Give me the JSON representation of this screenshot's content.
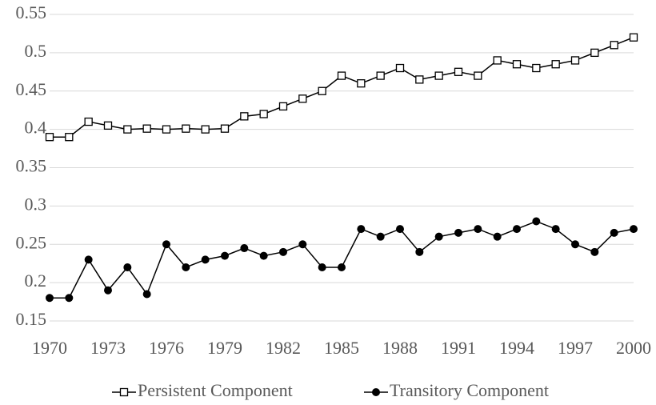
{
  "chart_data": {
    "type": "line",
    "x": [
      1970,
      1971,
      1972,
      1973,
      1974,
      1975,
      1976,
      1977,
      1978,
      1979,
      1980,
      1981,
      1982,
      1983,
      1984,
      1985,
      1986,
      1987,
      1988,
      1989,
      1990,
      1991,
      1992,
      1993,
      1994,
      1995,
      1996,
      1997,
      1998,
      1999,
      2000
    ],
    "series": [
      {
        "name": "Persistent Component",
        "color": "#000000",
        "marker": "square",
        "values": [
          0.39,
          0.39,
          0.41,
          0.405,
          0.4,
          0.401,
          0.4,
          0.401,
          0.4,
          0.401,
          0.417,
          0.42,
          0.43,
          0.44,
          0.45,
          0.47,
          0.46,
          0.47,
          0.48,
          0.465,
          0.47,
          0.475,
          0.47,
          0.49,
          0.485,
          0.48,
          0.485,
          0.49,
          0.5,
          0.51,
          0.52
        ]
      },
      {
        "name": "Transitory Component",
        "color": "#000000",
        "marker": "circle",
        "values": [
          0.18,
          0.18,
          0.23,
          0.19,
          0.22,
          0.185,
          0.25,
          0.22,
          0.23,
          0.235,
          0.245,
          0.235,
          0.24,
          0.25,
          0.22,
          0.22,
          0.27,
          0.26,
          0.27,
          0.24,
          0.26,
          0.265,
          0.27,
          0.26,
          0.27,
          0.28,
          0.27,
          0.25,
          0.24,
          0.265,
          0.27
        ]
      }
    ],
    "xlim": [
      1970,
      2000
    ],
    "xticks": [
      1970,
      1973,
      1976,
      1979,
      1982,
      1985,
      1988,
      1991,
      1994,
      1997,
      2000
    ],
    "ylim": [
      0.15,
      0.55
    ],
    "yticks": [
      0.15,
      0.2,
      0.25,
      0.3,
      0.35,
      0.4,
      0.45,
      0.5,
      0.55
    ],
    "grid": true,
    "legend": "bottom"
  }
}
